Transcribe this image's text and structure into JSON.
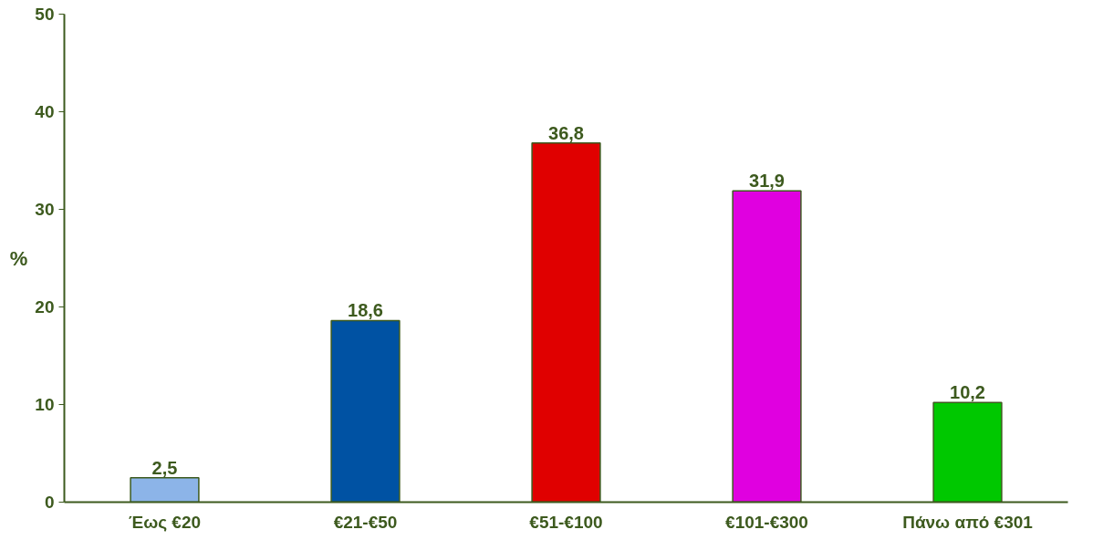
{
  "chart_data": {
    "type": "bar",
    "ylabel": "%",
    "categories": [
      "Έως €20",
      "€21-€50",
      "€51-€100",
      "€101-€300",
      "Πάνω από €301"
    ],
    "values": [
      2.5,
      18.6,
      36.8,
      31.9,
      10.2
    ],
    "colors": [
      "#8cb4e8",
      "#0052a3",
      "#e00000",
      "#e000e0",
      "#00c800"
    ],
    "value_labels": [
      "2,5",
      "18,6",
      "36,8",
      "31,9",
      "10,2"
    ],
    "ylim": [
      0,
      50
    ],
    "yticks": [
      0,
      10,
      20,
      30,
      40,
      50
    ],
    "grid": false
  }
}
